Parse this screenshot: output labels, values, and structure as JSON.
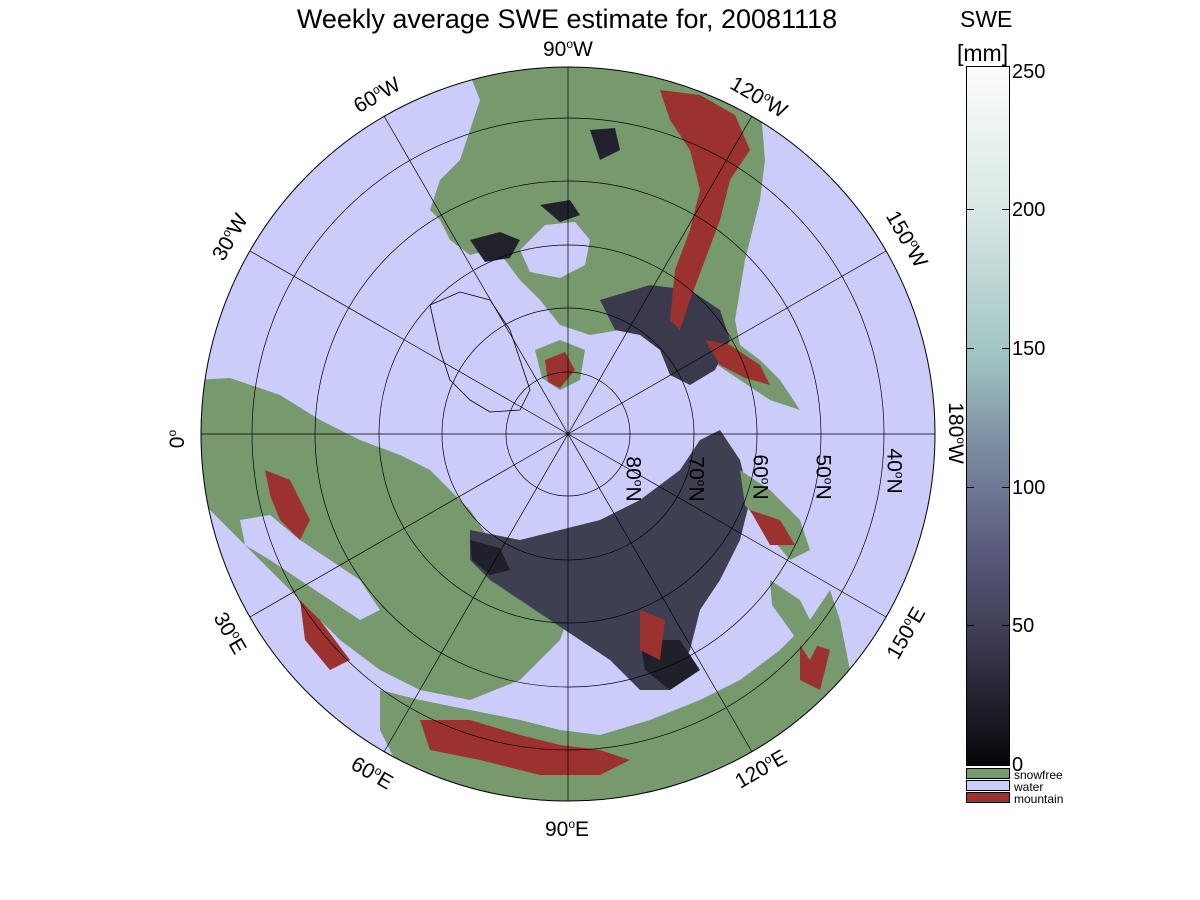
{
  "title": "Weekly average SWE estimate for, 20081118",
  "longitude_labels": {
    "w90": "90",
    "w60": "60",
    "w120": "120",
    "w30": "30",
    "w150": "150",
    "zero": "0",
    "w180": "180",
    "e30": "30",
    "e150": "150",
    "e60": "60",
    "e120": "120",
    "e90": "90",
    "deg": "o",
    "west": "W",
    "east": "E"
  },
  "latitude_labels": {
    "n80": "80",
    "n70": "70",
    "n60": "60",
    "n50": "50",
    "n40": "40",
    "north": "N"
  },
  "colorbar": {
    "title_line1": "SWE",
    "title_line2": "[mm]",
    "ticks": [
      "250",
      "200",
      "150",
      "100",
      "50",
      "0"
    ],
    "range": [
      0,
      250
    ],
    "categories": [
      {
        "label": "snowfree",
        "color": "#76996e"
      },
      {
        "label": "water",
        "color": "#ccccfb"
      },
      {
        "label": "mountain",
        "color": "#9b3230"
      }
    ]
  },
  "colors": {
    "ocean": "#ccccfb",
    "snowfree": "#76996e",
    "mountain": "#9b3230",
    "snow_dark": "#2a2a38"
  }
}
